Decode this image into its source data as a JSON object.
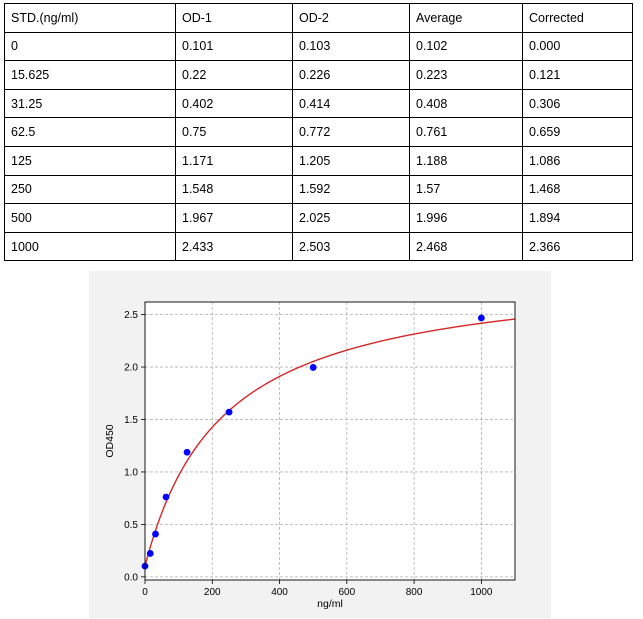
{
  "table": {
    "headers": [
      "STD.(ng/ml)",
      "OD-1",
      "OD-2",
      "Average",
      "Corrected"
    ],
    "rows": [
      [
        "0",
        "0.101",
        "0.103",
        "0.102",
        "0.000"
      ],
      [
        "15.625",
        "0.22",
        "0.226",
        "0.223",
        "0.121"
      ],
      [
        "31.25",
        "0.402",
        "0.414",
        "0.408",
        "0.306"
      ],
      [
        "62.5",
        "0.75",
        "0.772",
        "0.761",
        "0.659"
      ],
      [
        "125",
        "1.171",
        "1.205",
        "1.188",
        "1.086"
      ],
      [
        "250",
        "1.548",
        "1.592",
        "1.57",
        "1.468"
      ],
      [
        "500",
        "1.967",
        "2.025",
        "1.996",
        "1.894"
      ],
      [
        "1000",
        "2.433",
        "2.503",
        "2.468",
        "2.366"
      ]
    ]
  },
  "chart_data": {
    "type": "scatter",
    "title": "",
    "xlabel": "ng/ml",
    "ylabel": "OD450",
    "xlim": [
      0,
      1100
    ],
    "ylim": [
      -0.03,
      2.62
    ],
    "xticks": [
      0,
      200,
      400,
      600,
      800,
      1000
    ],
    "xtick_labels": [
      "0",
      "200",
      "400",
      "600",
      "800",
      "1000"
    ],
    "yticks": [
      0.0,
      0.5,
      1.0,
      1.5,
      2.0,
      2.5
    ],
    "ytick_labels": [
      "0.0",
      "0.5",
      "1.0",
      "1.5",
      "2.0",
      "2.5"
    ],
    "grid": true,
    "series": [
      {
        "type": "scatter",
        "color": "#0000ff",
        "x": [
          0,
          15.625,
          31.25,
          62.5,
          125,
          250,
          500,
          1000
        ],
        "y": [
          0.102,
          0.223,
          0.408,
          0.761,
          1.188,
          1.57,
          1.996,
          2.468
        ]
      },
      {
        "type": "line",
        "color": "#d62728",
        "fit": {
          "A": 0.102,
          "D": 2.95,
          "C": 230,
          "B": 1.0
        }
      }
    ]
  }
}
